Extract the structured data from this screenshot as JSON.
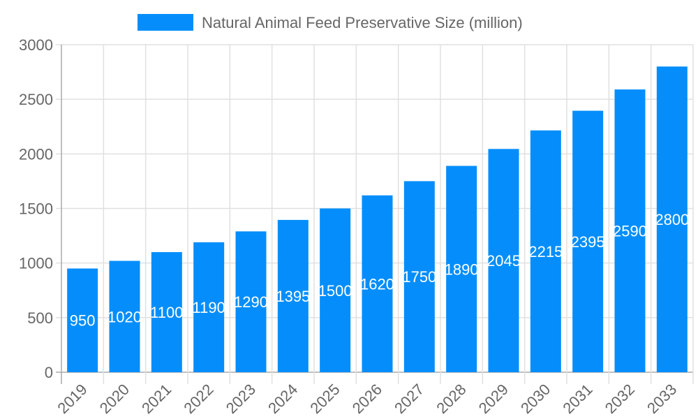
{
  "chart_data": {
    "type": "bar",
    "title": "",
    "legend": {
      "label": "Natural Animal Feed Preservative Size (million)",
      "placement": "top"
    },
    "categories": [
      "2019",
      "2020",
      "2021",
      "2022",
      "2023",
      "2024",
      "2025",
      "2026",
      "2027",
      "2028",
      "2029",
      "2030",
      "2031",
      "2032",
      "2033"
    ],
    "series": [
      {
        "name": "Natural Animal Feed Preservative Size (million)",
        "values": [
          950,
          1020,
          1100,
          1190,
          1290,
          1395,
          1500,
          1620,
          1750,
          1890,
          2045,
          2215,
          2395,
          2590,
          2800
        ]
      }
    ],
    "ylim": [
      0,
      3000
    ],
    "yticks": [
      0,
      500,
      1000,
      1500,
      2000,
      2500,
      3000
    ],
    "grid": true,
    "data_labels": true,
    "colors": {
      "bar": "#058efb",
      "grid": "#e0e0e0",
      "axis": "#aaaaaa",
      "text": "#666666",
      "label": "#ffffff"
    }
  }
}
